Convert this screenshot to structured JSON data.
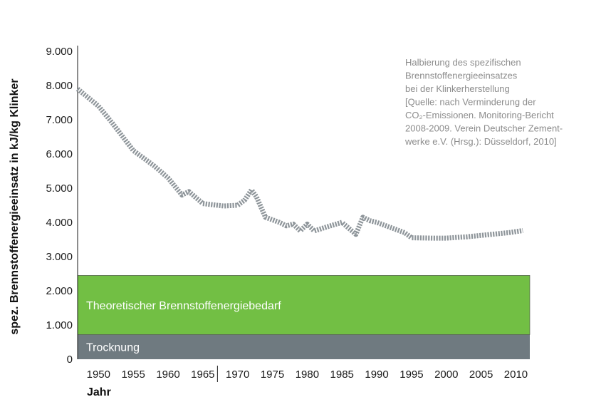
{
  "chart_data": {
    "type": "line",
    "title": "",
    "xlabel": "Jahr",
    "ylabel": "spez. Brennstoffenergieeinsatz in kJ/kg Klinker",
    "xlim": [
      1947,
      2012
    ],
    "ylim": [
      0,
      9000
    ],
    "y_ticks": [
      0,
      1000,
      2000,
      3000,
      4000,
      5000,
      6000,
      7000,
      8000,
      9000
    ],
    "y_tick_labels": [
      "0",
      "1.000",
      "2.000",
      "3.000",
      "4.000",
      "5.000",
      "6.000",
      "7.000",
      "8.000",
      "9.000"
    ],
    "x_ticks": [
      1950,
      1955,
      1960,
      1965,
      1970,
      1975,
      1980,
      1985,
      1990,
      1995,
      2000,
      2005,
      2010
    ],
    "x_tick_labels": [
      "1950",
      "1955",
      "1960",
      "1965",
      "1970",
      "1975",
      "1980",
      "1985",
      "1990",
      "1995",
      "2000",
      "2005",
      "2010"
    ],
    "grid": false,
    "colors": {
      "series": "#8e959a",
      "theoretical": "#72bf44",
      "drying": "#6f7a80",
      "axis": "#1a1a1a",
      "annotation": "#8c8c8c"
    },
    "bands": [
      {
        "label": "Trocknung",
        "from": 0,
        "to": 720
      },
      {
        "label": "Theoretischer Brennstoffenergiebedarf",
        "from": 720,
        "to": 2450
      }
    ],
    "series": [
      {
        "style": "dashed-thick",
        "x": [
          1947,
          1950,
          1952,
          1955,
          1958,
          1960,
          1962,
          1963,
          1965,
          1968,
          1970,
          1971,
          1972,
          1972.7,
          1974,
          1976,
          1977,
          1978,
          1979,
          1980,
          1981,
          1983,
          1985,
          1987,
          1988,
          1989,
          1990,
          1992,
          1994,
          1995,
          1998,
          2000,
          2003,
          2006,
          2009,
          2011
        ],
        "y": [
          7900,
          7400,
          6900,
          6100,
          5650,
          5300,
          4800,
          4900,
          4550,
          4480,
          4500,
          4650,
          4950,
          4750,
          4150,
          4000,
          3900,
          3950,
          3750,
          3950,
          3750,
          3880,
          4000,
          3650,
          4150,
          4050,
          4000,
          3850,
          3700,
          3550,
          3540,
          3540,
          3580,
          3640,
          3700,
          3760
        ]
      }
    ],
    "annotation": [
      "Halbierung des spezifischen",
      "Brennstoffenergieeinsatzes",
      "bei der Klinkerherstellung",
      "[Quelle: nach Verminderung der",
      "CO₂-Emissionen. Monitoring-Bericht",
      "2008-2009. Verein Deutscher Zement-",
      "werke e.V. (Hrsg.): Düsseldorf, 2010]"
    ]
  }
}
